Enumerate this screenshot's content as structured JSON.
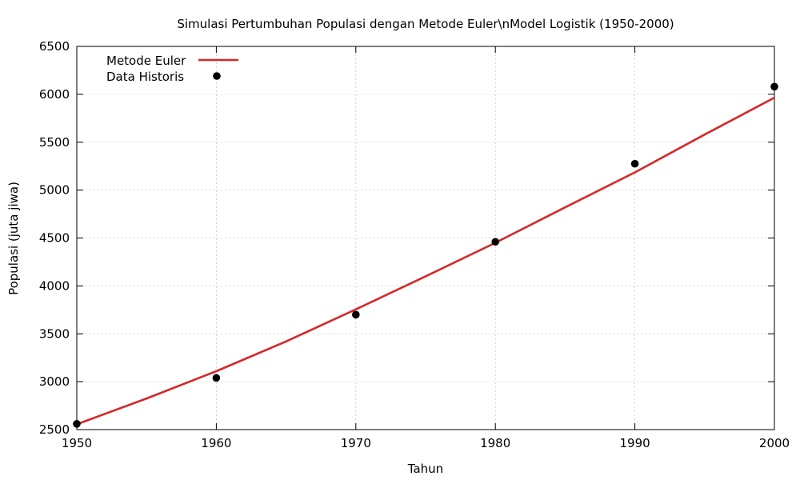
{
  "chart_data": {
    "type": "line",
    "title": "Simulasi Pertumbuhan Populasi dengan Metode Euler\\nModel Logistik (1950-2000)",
    "xlabel": "Tahun",
    "ylabel": "Populasi (juta jiwa)",
    "xlim": [
      1950,
      2000
    ],
    "ylim": [
      2500,
      6500
    ],
    "x_ticks": [
      "1950",
      "1960",
      "1970",
      "1980",
      "1990",
      "2000"
    ],
    "y_ticks": [
      "2500",
      "3000",
      "3500",
      "4000",
      "4500",
      "5000",
      "5500",
      "6000",
      "6500"
    ],
    "grid": true,
    "legend_position": "top-left",
    "series": [
      {
        "name": "Metode Euler",
        "kind": "line",
        "color": "#d62728",
        "x": [
          1950,
          1955,
          1960,
          1965,
          1970,
          1975,
          1980,
          1985,
          1990,
          1995,
          2000
        ],
        "values": [
          2555,
          2825,
          3110,
          3420,
          3755,
          4100,
          4450,
          4820,
          5185,
          5580,
          5965
        ]
      },
      {
        "name": "Data Historis",
        "kind": "scatter",
        "color": "#000000",
        "x": [
          1950,
          1960,
          1970,
          1980,
          1990,
          2000
        ],
        "values": [
          2560,
          3040,
          3700,
          4460,
          5275,
          6080
        ]
      }
    ]
  }
}
